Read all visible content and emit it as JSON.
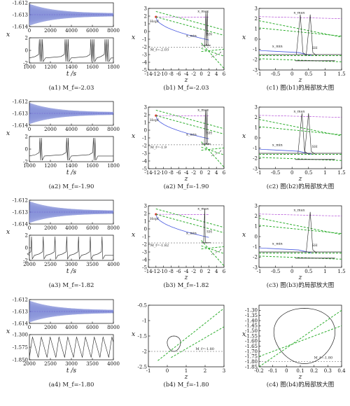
{
  "chart_data": [
    {
      "id": "a1",
      "type": "line",
      "caption": "(a1) M_f=-2.03",
      "top": {
        "ylabel": "x",
        "yticks": [
          "-1.612",
          "-1.613",
          "-1.614"
        ],
        "xticks": [
          "0",
          "2000",
          "4000",
          "6000",
          "8000"
        ],
        "ylim": [
          -1.614,
          -1.612
        ],
        "xlim": [
          0,
          8000
        ],
        "center": -1.613,
        "amp_start": 0.0009,
        "amp_end": 0.00012,
        "cycles": 30
      },
      "bottom": {
        "yticks": [
          "2",
          "0",
          "-2"
        ],
        "xticks": [
          "1000",
          "1200",
          "1400",
          "1600",
          "1800"
        ],
        "ylim": [
          -2,
          2
        ],
        "xlim": [
          1000,
          1800
        ],
        "spikes": [
          1095,
          1340,
          1585,
          1720
        ],
        "burst": 3,
        "base": -1.2,
        "xlabel": "t /s"
      }
    },
    {
      "id": "a2",
      "type": "line",
      "caption": "(a2) M_f=-1.90",
      "top": {
        "ylabel": "x",
        "yticks": [
          "-1.612",
          "-1.613",
          "-1.614"
        ],
        "xticks": [
          "0",
          "2000",
          "4000",
          "6000",
          "8000"
        ],
        "ylim": [
          -1.614,
          -1.612
        ],
        "xlim": [
          0,
          8000
        ],
        "center": -1.613,
        "amp_start": 0.0009,
        "amp_end": 0.0001,
        "cycles": 30
      },
      "bottom": {
        "yticks": [
          "2",
          "0",
          "-2"
        ],
        "xticks": [
          "1000",
          "1200",
          "1400",
          "1600",
          "1800"
        ],
        "ylim": [
          -2,
          2
        ],
        "xlim": [
          1000,
          1800
        ],
        "spikes": [
          1100,
          1355,
          1610
        ],
        "burst": 2,
        "base": -1.1,
        "xlabel": "t /s"
      }
    },
    {
      "id": "a3",
      "type": "line",
      "caption": "(a3) M_f=-1.82",
      "top": {
        "ylabel": "x",
        "yticks": [
          "-1.612",
          "-1.613",
          "-1.614"
        ],
        "xticks": [
          "0",
          "2000",
          "4000",
          "6000",
          "8000"
        ],
        "ylim": [
          -1.614,
          -1.612
        ],
        "xlim": [
          0,
          8000
        ],
        "center": -1.613,
        "amp_start": 0.0009,
        "amp_end": 0.00012,
        "cycles": 30
      },
      "bottom": {
        "yticks": [
          "2",
          "0",
          "-2"
        ],
        "xticks": [
          "2000",
          "2500",
          "3000",
          "3500",
          "4000"
        ],
        "ylim": [
          -2,
          2
        ],
        "xlim": [
          2000,
          4000
        ],
        "spikes": [
          2050,
          2330,
          2610,
          2890,
          3170,
          3450,
          3730
        ],
        "burst": 1,
        "base": -1.2,
        "xlabel": "t /s"
      }
    },
    {
      "id": "a4",
      "type": "line",
      "caption": "(a4) M_f=-1.80",
      "top": {
        "ylabel": "x",
        "yticks": [
          "-1.612",
          "-1.613",
          "-1.614"
        ],
        "xticks": [
          "0",
          "2000",
          "4000",
          "6000",
          "8000"
        ],
        "ylim": [
          -1.614,
          -1.612
        ],
        "xlim": [
          0,
          8000
        ],
        "center": -1.613,
        "amp_start": 0.0009,
        "amp_end": 0.00012,
        "cycles": 30
      },
      "bottom": {
        "yticks": [
          "-1.300",
          "-1.575",
          "-1.850"
        ],
        "xticks": [
          "2000",
          "2500",
          "3000",
          "3500",
          "4000"
        ],
        "ylim": [
          -1.85,
          -1.3
        ],
        "xlim": [
          2000,
          4000
        ],
        "period": 210,
        "xlabel": "t /s"
      }
    },
    {
      "id": "b1",
      "type": "line",
      "caption": "(b1) M_f=-2.03",
      "xlabel": "z",
      "ylabel": "x",
      "xlim": [
        -14,
        6
      ],
      "ylim": [
        -5,
        3
      ],
      "xticks": [
        -14,
        -12,
        -10,
        -8,
        -6,
        -4,
        -2,
        0,
        2,
        4,
        6
      ],
      "yticks": [
        3,
        2,
        1,
        0,
        -1,
        -2,
        -3,
        -4,
        -5
      ],
      "mf": -2.03,
      "mf_label": "M_f=-2.03",
      "hopf_label": "Hopf",
      "max_label": "x_max",
      "min_label": "x_min",
      "sn_label": "SN",
      "spike_z": 1.2,
      "spikes": 2
    },
    {
      "id": "b2",
      "type": "line",
      "caption": "(a2) M_f=-1.90",
      "xlabel": "z",
      "ylabel": "x",
      "xlim": [
        -14,
        6
      ],
      "ylim": [
        -5,
        3
      ],
      "xticks": [
        -14,
        -12,
        -10,
        -8,
        -6,
        -4,
        -2,
        0,
        2,
        4,
        6
      ],
      "yticks": [
        3,
        2,
        1,
        0,
        -1,
        -2,
        -3,
        -4,
        -5
      ],
      "mf": -1.9,
      "mf_label": "M_f=-1.9",
      "hopf_label": "Hopf",
      "max_label": "x_max",
      "min_label": "x_min",
      "sn_label": "SH",
      "spike_z": 1.1,
      "spikes": 2
    },
    {
      "id": "b3",
      "type": "line",
      "caption": "(b3) M_f=-1.82",
      "xlabel": "z",
      "ylabel": "x",
      "xlim": [
        -14,
        6
      ],
      "ylim": [
        -5,
        3
      ],
      "xticks": [
        -14,
        -12,
        -10,
        -8,
        -6,
        -4,
        -2,
        0,
        2,
        4,
        6
      ],
      "yticks": [
        3,
        2,
        1,
        0,
        -1,
        -2,
        -3,
        -4,
        -5
      ],
      "mf": -1.82,
      "mf_label": "M_f=-1.82",
      "hopf_label": "Hopf",
      "max_label": "x_max",
      "min_label": "x_min",
      "sn_label": "SH",
      "spike_z": 0.9,
      "spikes": 1
    },
    {
      "id": "b4",
      "type": "line",
      "caption": "(b4) M_f=-1.80",
      "xlabel": "z",
      "ylabel": "x",
      "xlim": [
        -1,
        3
      ],
      "ylim": [
        -2.5,
        -0.5
      ],
      "xticks": [
        -1,
        0,
        1,
        2,
        3
      ],
      "yticks": [
        -0.5,
        -1.0,
        -1.5,
        -2.0,
        -2.5
      ],
      "mf": -1.8,
      "mf_label": "M_f=-1.80",
      "loop": true
    },
    {
      "id": "c1",
      "type": "line",
      "caption": "(c1) 图(b1)的局部放大图",
      "xlabel": "z",
      "ylabel": "x",
      "xlim": [
        -1,
        1.5
      ],
      "ylim": [
        -3,
        3
      ],
      "xticks": [
        -1.0,
        -0.5,
        0,
        0.5,
        1.0,
        1.5
      ],
      "yticks": [
        3,
        2,
        1,
        0,
        -1,
        -2,
        -3
      ],
      "spikes": [
        0.25,
        0.55
      ],
      "max_label": "x_max",
      "min_label": "x_min",
      "sn_label": "SH"
    },
    {
      "id": "c2",
      "type": "line",
      "caption": "(c2) 图(b2)的局部放大图",
      "xlabel": "z",
      "ylabel": "x",
      "xlim": [
        -1,
        1.5
      ],
      "ylim": [
        -3,
        3
      ],
      "xticks": [
        -1.0,
        -0.5,
        0,
        0.5,
        1.0,
        1.5
      ],
      "yticks": [
        3,
        2,
        1,
        0,
        -1,
        -2,
        -3
      ],
      "spikes": [
        0.3,
        0.5
      ],
      "max_label": "x_max",
      "min_label": "x_min",
      "sn_label": "SH"
    },
    {
      "id": "c3",
      "type": "line",
      "caption": "(c3) 图(b3)的局部放大图",
      "xlabel": "z",
      "ylabel": "x",
      "xlim": [
        -1,
        1.5
      ],
      "ylim": [
        -3,
        3
      ],
      "xticks": [
        -1.0,
        -0.5,
        0,
        0.5,
        1.0,
        1.5
      ],
      "yticks": [
        3,
        2,
        1,
        0,
        -1,
        -2,
        -3
      ],
      "spikes": [
        0.55
      ],
      "max_label": "x_max",
      "min_label": "x_min",
      "sn_label": "SH"
    },
    {
      "id": "c4",
      "type": "line",
      "caption": "(c4) 图(b4)的局部放大图",
      "xlabel": "z",
      "ylabel": "x",
      "xlim": [
        -0.2,
        0.4
      ],
      "ylim": [
        -1.85,
        -1.25
      ],
      "xticks": [
        -0.2,
        -0.1,
        0,
        0.1,
        0.2,
        0.3,
        0.4
      ],
      "yticks": [
        -1.3,
        -1.35,
        -1.4,
        -1.45,
        -1.5,
        -1.55,
        -1.6,
        -1.65,
        -1.7,
        -1.75,
        -1.8,
        -1.85
      ],
      "mf_label": "M_f=-1.80",
      "loop": true
    }
  ]
}
